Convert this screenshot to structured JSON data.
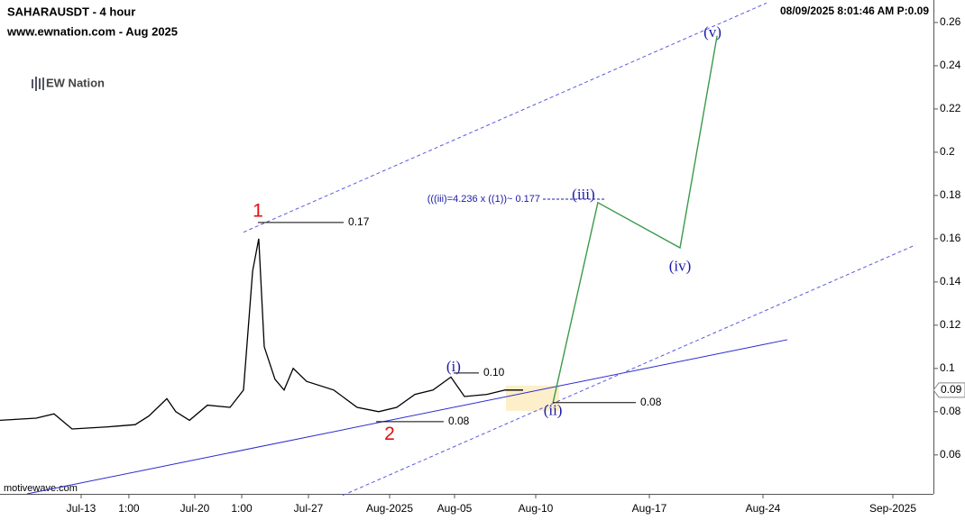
{
  "header": {
    "symbol": "SAHARAUSDT - 4 hour",
    "site": "www.ewnation.com  - Aug 2025",
    "logo": "EW Nation",
    "timestamp": "08/09/2025 8:01:46 AM  P:0.09",
    "footer": "motivewave.com"
  },
  "chart_data": {
    "type": "line",
    "color": "#000000",
    "x": [
      189.0,
      191.22,
      192.33,
      193.44,
      195.67,
      197.33,
      198.17,
      199.28,
      199.83,
      200.67,
      201.78,
      203.17,
      204.0,
      204.56,
      204.94,
      205.28,
      205.94,
      206.5,
      207.06,
      207.89,
      209.56,
      211.0,
      212.33,
      213.44,
      214.56,
      215.67,
      216.78,
      217.61,
      219.0,
      220.11,
      221.22
    ],
    "values": [
      0.076,
      0.077,
      0.079,
      0.072,
      0.073,
      0.074,
      0.078,
      0.086,
      0.08,
      0.076,
      0.083,
      0.082,
      0.09,
      0.145,
      0.16,
      0.11,
      0.095,
      0.09,
      0.1,
      0.094,
      0.09,
      0.082,
      0.08,
      0.082,
      0.088,
      0.09,
      0.096,
      0.087,
      0.088,
      0.09,
      0.09
    ],
    "last_price": 0.09,
    "projection": {
      "color": "#3a9a4a",
      "x": [
        223.06,
        225.83,
        230.89,
        233.17
      ],
      "values": [
        0.084,
        0.1767,
        0.1558,
        0.2538
      ]
    },
    "trendlines": [
      {
        "color": "#2a2ad0",
        "dashed": false,
        "x": [
          190.67,
          237.5
        ],
        "values": [
          0.042,
          0.1133
        ]
      },
      {
        "color": "#5a5ae0",
        "dashed": true,
        "x": [
          204.0,
          236.22
        ],
        "values": [
          0.163,
          0.269
        ]
      },
      {
        "color": "#5a5ae0",
        "dashed": true,
        "x": [
          210.11,
          245.39
        ],
        "values": [
          0.0413,
          0.1571
        ]
      }
    ],
    "zone": {
      "x": [
        220.17,
        223.44
      ],
      "y": [
        0.0804,
        0.0921
      ],
      "color": "#fbecc0"
    },
    "levels": [
      {
        "value": 0.1675,
        "label": "0.17",
        "x": [
          204.89,
          210.17
        ]
      },
      {
        "value": 0.0754,
        "label": "0.08",
        "x": [
          212.17,
          216.33
        ]
      },
      {
        "value": 0.0979,
        "label": "0.10",
        "x": [
          216.94,
          218.5
        ]
      },
      {
        "value": 0.0842,
        "label": "0.08",
        "x": [
          223.06,
          228.17
        ]
      }
    ],
    "wave_labels": [
      {
        "label": "1",
        "x": 204.89,
        "y": 0.1725,
        "color": "#e01010"
      },
      {
        "label": "2",
        "x": 213.0,
        "y": 0.0693,
        "color": "#e01010"
      },
      {
        "label": "(i)",
        "x": 216.94,
        "y": 0.1004,
        "color": "#1a1aa8"
      },
      {
        "label": "(ii)",
        "x": 223.06,
        "y": 0.08,
        "color": "#1a1aa8"
      },
      {
        "label": "(iii)",
        "x": 224.94,
        "y": 0.18,
        "color": "#1a1aa8"
      },
      {
        "label": "(iv)",
        "x": 230.89,
        "y": 0.1467,
        "color": "#1a1aa8"
      },
      {
        "label": "(v)",
        "x": 232.89,
        "y": 0.255,
        "color": "#1a1aa8"
      }
    ],
    "note": {
      "label": "(((iii)=4.236 x ((1))~ 0.177",
      "x": 222.28,
      "y": 0.1783,
      "color": "#1a1aa8"
    },
    "xlim": [
      189.0,
      246.5
    ],
    "ylim": [
      0.042,
      0.2704
    ],
    "xticks": [
      {
        "value": 194,
        "label": "Jul-13"
      },
      {
        "value": 196.94,
        "label": "1:00"
      },
      {
        "value": 201,
        "label": "Jul-20"
      },
      {
        "value": 203.89,
        "label": "1:00"
      },
      {
        "value": 208,
        "label": "Jul-27"
      },
      {
        "value": 213,
        "label": "Aug-2025"
      },
      {
        "value": 217,
        "label": "Aug-05"
      },
      {
        "value": 222,
        "label": "Aug-10"
      },
      {
        "value": 229,
        "label": "Aug-17"
      },
      {
        "value": 236,
        "label": "Aug-24"
      },
      {
        "value": 244,
        "label": "Sep-2025"
      }
    ],
    "yticks": [
      0.06,
      0.08,
      0.1,
      0.12,
      0.14,
      0.16,
      0.18,
      0.2,
      0.22,
      0.24,
      0.26
    ],
    "grid": false
  }
}
